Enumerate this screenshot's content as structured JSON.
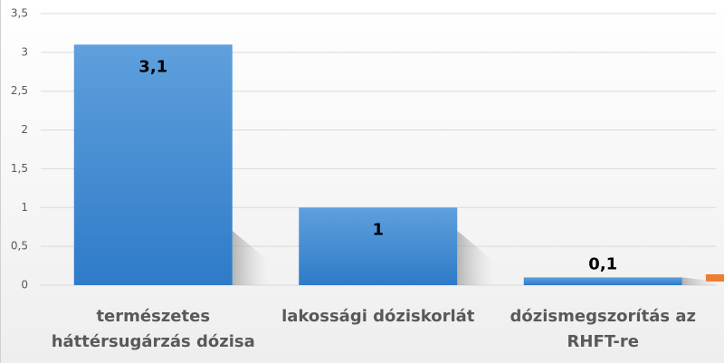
{
  "chart_data": {
    "type": "bar",
    "categories": [
      "természetes háttérsugárzás dózisa",
      "lakossági dóziskorlát",
      "dózismegszorítás az RHFT-re"
    ],
    "values": [
      3.1,
      1,
      0.1
    ],
    "value_labels": [
      "3,1",
      "1",
      "0,1"
    ],
    "color": "#4a8fd4",
    "ylim": [
      0,
      3.5
    ],
    "yticks": [
      0,
      {
        "value": 0.5,
        "label": "0,5"
      },
      1,
      {
        "value": 1.5,
        "label": "1,5"
      },
      2,
      {
        "value": 2.5,
        "label": "2,5"
      },
      3,
      {
        "value": 3.5,
        "label": "3,5"
      }
    ],
    "grid": true
  }
}
